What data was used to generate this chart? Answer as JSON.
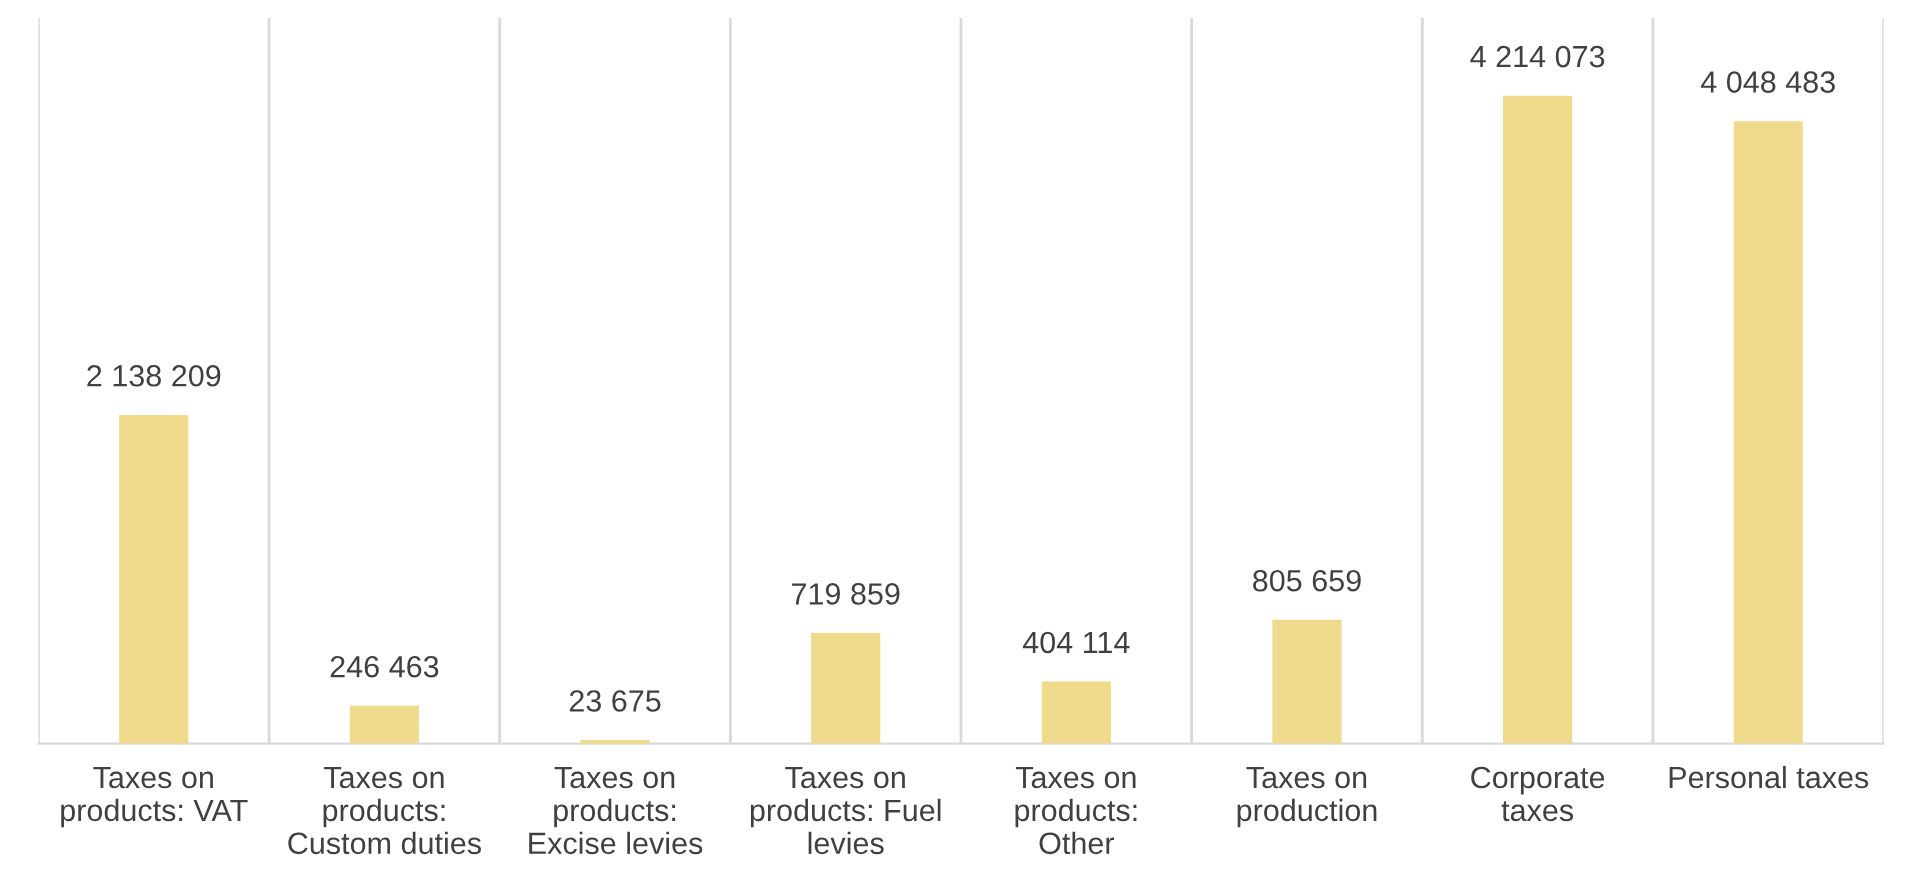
{
  "chart_data": {
    "type": "bar",
    "categories": [
      "Taxes on products: VAT",
      "Taxes on products: Custom duties",
      "Taxes on products: Excise levies",
      "Taxes on products: Fuel levies",
      "Taxes on products: Other",
      "Taxes on production",
      "Corporate taxes",
      "Personal taxes"
    ],
    "values": [
      2138209,
      246463,
      23675,
      719859,
      404114,
      805659,
      4214073,
      4048483
    ],
    "value_labels": [
      "2 138 209",
      "246 463",
      "23 675",
      "719 859",
      "404 114",
      "805 659",
      "4 214 073",
      "4 048 483"
    ],
    "color": "#f0da8c",
    "grid": "x",
    "tick_labels": "x"
  }
}
